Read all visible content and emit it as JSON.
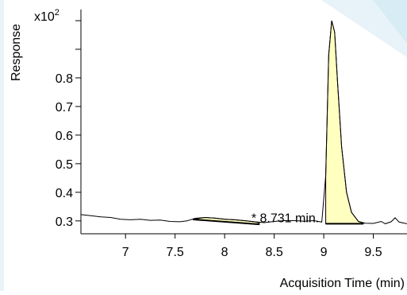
{
  "chart_data": {
    "type": "line",
    "title": "",
    "xlabel": "Acquisition Time (min)",
    "ylabel": "Response",
    "y_multiplier_label": "x10",
    "y_multiplier_exponent": "2",
    "xlim": [
      6.55,
      9.84
    ],
    "ylim": [
      0.255,
      1.05
    ],
    "x_ticks": [
      {
        "value": 7,
        "label": "7"
      },
      {
        "value": 7.5,
        "label": "7.5"
      },
      {
        "value": 8,
        "label": "8"
      },
      {
        "value": 8.5,
        "label": "8.5"
      },
      {
        "value": 9,
        "label": "9"
      },
      {
        "value": 9.5,
        "label": "9.5"
      }
    ],
    "y_ticks": [
      {
        "value": 0.3,
        "label": "0.3"
      },
      {
        "value": 0.4,
        "label": "0.4"
      },
      {
        "value": 0.5,
        "label": "0.5"
      },
      {
        "value": 0.6,
        "label": "0.6"
      },
      {
        "value": 0.7,
        "label": "0.7"
      },
      {
        "value": 0.8,
        "label": "0.8"
      },
      {
        "value": 0.9,
        "label": ""
      },
      {
        "value": 1.0,
        "label": ""
      }
    ],
    "series": [
      {
        "values": [
          [
            6.55,
            0.322
          ],
          [
            6.65,
            0.318
          ],
          [
            6.75,
            0.314
          ],
          [
            6.85,
            0.312
          ],
          [
            6.95,
            0.306
          ],
          [
            7.05,
            0.304
          ],
          [
            7.15,
            0.306
          ],
          [
            7.25,
            0.302
          ],
          [
            7.35,
            0.303
          ],
          [
            7.45,
            0.298
          ],
          [
            7.55,
            0.297
          ],
          [
            7.62,
            0.3
          ],
          [
            7.7,
            0.309
          ],
          [
            7.8,
            0.312
          ],
          [
            7.9,
            0.31
          ],
          [
            8.0,
            0.306
          ],
          [
            8.1,
            0.304
          ],
          [
            8.2,
            0.301
          ],
          [
            8.3,
            0.297
          ],
          [
            8.4,
            0.294
          ],
          [
            8.5,
            0.298
          ],
          [
            8.6,
            0.301
          ],
          [
            8.7,
            0.301
          ],
          [
            8.8,
            0.299
          ],
          [
            8.9,
            0.301
          ],
          [
            8.98,
            0.296
          ],
          [
            9.02,
            0.46
          ],
          [
            9.05,
            0.88
          ],
          [
            9.08,
            1.0
          ],
          [
            9.11,
            0.96
          ],
          [
            9.14,
            0.78
          ],
          [
            9.18,
            0.56
          ],
          [
            9.23,
            0.4
          ],
          [
            9.28,
            0.33
          ],
          [
            9.35,
            0.298
          ],
          [
            9.42,
            0.292
          ],
          [
            9.5,
            0.291
          ],
          [
            9.58,
            0.298
          ],
          [
            9.62,
            0.29
          ],
          [
            9.68,
            0.297
          ],
          [
            9.72,
            0.311
          ],
          [
            9.76,
            0.296
          ],
          [
            9.84,
            0.29
          ]
        ]
      }
    ],
    "integrated_peaks": [
      {
        "fill": "#ffffc0",
        "baseline_start": [
          7.68,
          0.305
        ],
        "baseline_end": [
          8.35,
          0.288
        ],
        "top": [
          [
            7.68,
            0.305
          ],
          [
            7.8,
            0.312
          ],
          [
            7.9,
            0.31
          ],
          [
            8.0,
            0.306
          ],
          [
            8.1,
            0.304
          ],
          [
            8.2,
            0.301
          ],
          [
            8.3,
            0.297
          ],
          [
            8.35,
            0.293
          ]
        ]
      },
      {
        "fill": "#ffffc0",
        "baseline_start": [
          9.02,
          0.29
        ],
        "baseline_end": [
          9.4,
          0.29
        ],
        "top": [
          [
            9.02,
            0.46
          ],
          [
            9.05,
            0.88
          ],
          [
            9.08,
            1.0
          ],
          [
            9.11,
            0.96
          ],
          [
            9.14,
            0.78
          ],
          [
            9.18,
            0.56
          ],
          [
            9.23,
            0.4
          ],
          [
            9.28,
            0.33
          ],
          [
            9.35,
            0.298
          ],
          [
            9.4,
            0.292
          ]
        ]
      }
    ],
    "annotations": [
      {
        "text": "* 8.731 min.",
        "x": 8.27,
        "y": 0.301
      }
    ],
    "grid": false,
    "legend": "none",
    "line_color": "#000000",
    "decoration_color": "#d7ecf4"
  }
}
